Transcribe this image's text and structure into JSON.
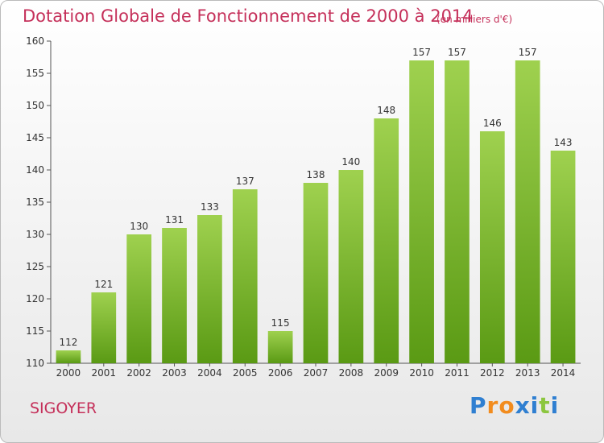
{
  "header": {
    "title": "Dotation Globale de Fonctionnement de 2000 à 2014",
    "subtitle": "(en milliers d'€)"
  },
  "footer": {
    "commune": "SIGOYER",
    "brand": [
      "P",
      "r",
      "o",
      "x",
      "i",
      "t",
      "i"
    ],
    "brand_colors": [
      "#2f7fd1",
      "#f28c1e",
      "#f28c1e",
      "#2f7fd1",
      "#2f7fd1",
      "#8cc63f",
      "#2f7fd1"
    ]
  },
  "colors": {
    "accent": "#c5305a",
    "bar_top": "#9fd14f",
    "bar_bottom": "#5a9a14"
  },
  "chart_data": {
    "type": "bar",
    "categories": [
      "2000",
      "2001",
      "2002",
      "2003",
      "2004",
      "2005",
      "2006",
      "2007",
      "2008",
      "2009",
      "2010",
      "2011",
      "2012",
      "2013",
      "2014"
    ],
    "values": [
      112,
      121,
      130,
      131,
      133,
      137,
      115,
      138,
      140,
      148,
      157,
      157,
      146,
      157,
      143
    ],
    "ylim": [
      110,
      160
    ],
    "yticks": [
      110,
      115,
      120,
      125,
      130,
      135,
      140,
      145,
      150,
      155,
      160
    ],
    "grid": false
  }
}
